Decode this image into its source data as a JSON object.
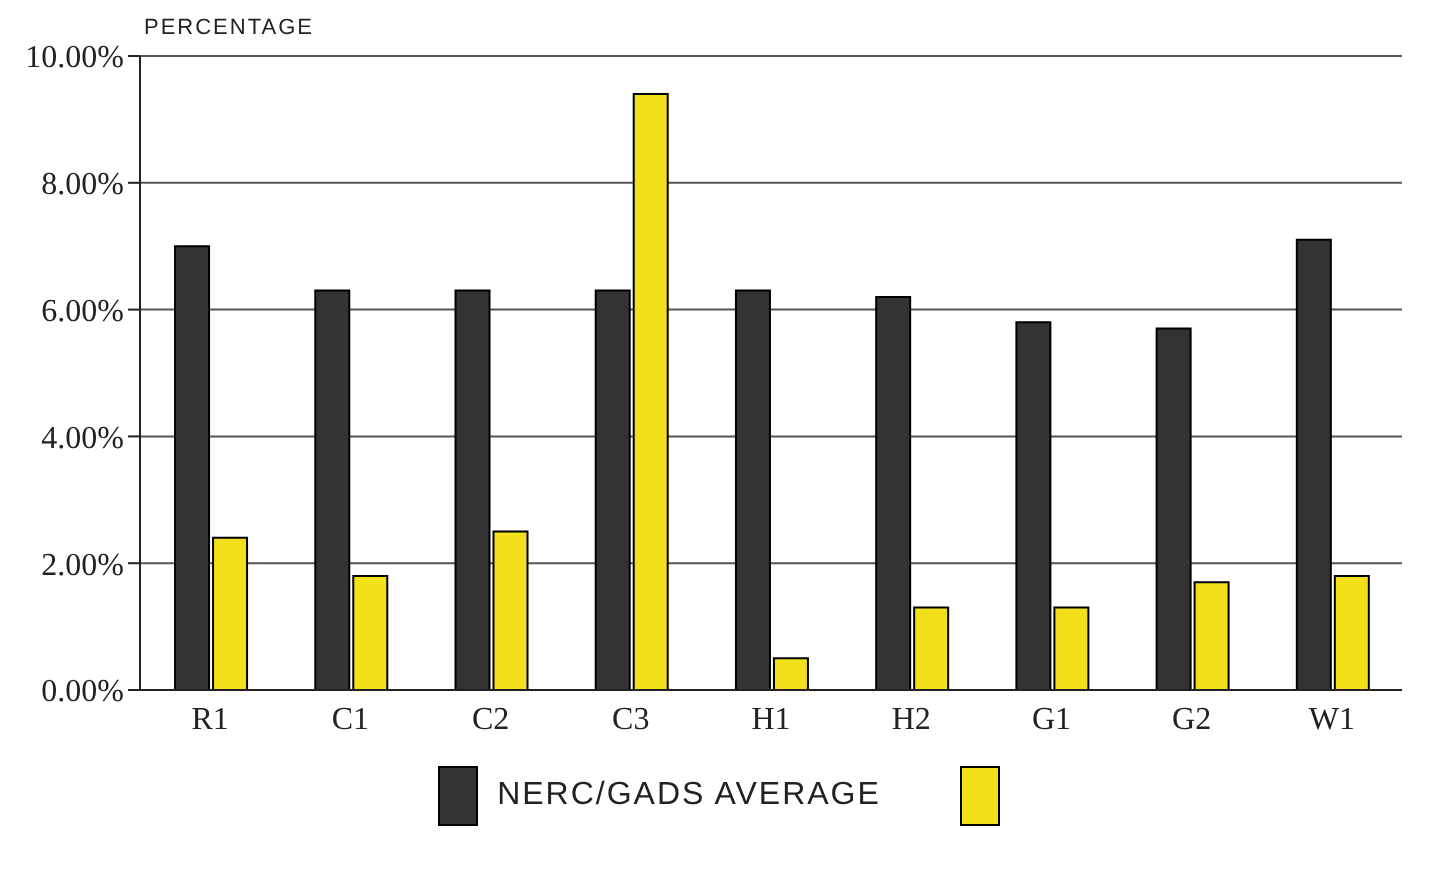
{
  "chart_data": {
    "type": "bar",
    "ylabel": "PERCENTAGE",
    "categories": [
      "R1",
      "C1",
      "C2",
      "C3",
      "H1",
      "H2",
      "G1",
      "G2",
      "W1"
    ],
    "series": [
      {
        "name": "NERC/GADS AVERAGE",
        "color": "#333333",
        "values": [
          7.0,
          6.3,
          6.3,
          6.3,
          6.3,
          6.2,
          5.8,
          5.7,
          7.1
        ]
      },
      {
        "color": "#f2e01a",
        "values": [
          2.4,
          1.8,
          2.5,
          9.4,
          0.5,
          1.3,
          1.3,
          1.7,
          1.8
        ]
      }
    ],
    "ylim": [
      0,
      10
    ],
    "yticks": [
      {
        "value": 0,
        "label": "0.00%"
      },
      {
        "value": 2,
        "label": "2.00%"
      },
      {
        "value": 4,
        "label": "4.00%"
      },
      {
        "value": 6,
        "label": "6.00%"
      },
      {
        "value": 8,
        "label": "8.00%"
      },
      {
        "value": 10,
        "label": "10.00%"
      }
    ],
    "grid": "y",
    "legend": "bottom"
  }
}
